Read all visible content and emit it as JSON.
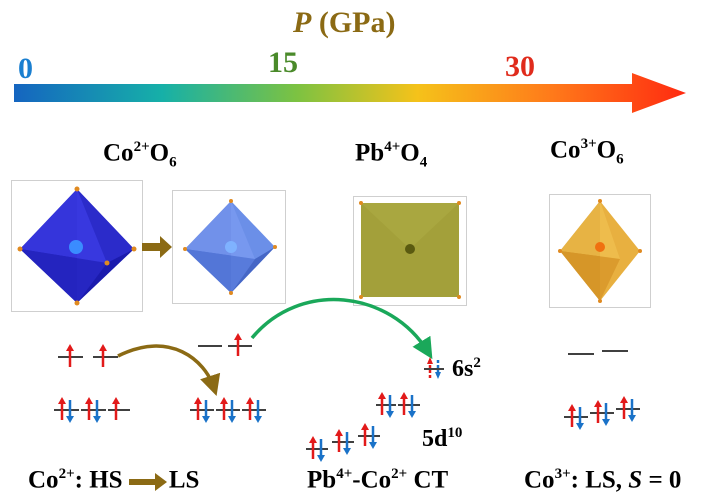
{
  "axis": {
    "title_symbol": "P",
    "title_unit": "(GPa)",
    "ticks": [
      {
        "label": "0",
        "color": "#1a7fd0"
      },
      {
        "label": "15",
        "color": "#4a8a2a"
      },
      {
        "label": "30",
        "color": "#e02b1c"
      }
    ],
    "gradient": [
      "#1565c0",
      "#16b0a8",
      "#7cc242",
      "#f5c21a",
      "#ff7a1a",
      "#ff2a10"
    ]
  },
  "groups": {
    "co2": {
      "base": "Co",
      "charge": "2+",
      "ligand": "O",
      "count": "6"
    },
    "pb4": {
      "base": "Pb",
      "charge": "4+",
      "ligand": "O",
      "count": "4"
    },
    "co3": {
      "base": "Co",
      "charge": "3+",
      "ligand": "O",
      "count": "6"
    }
  },
  "levels": {
    "s_orbital": "6s",
    "s_sup": "2",
    "d_orbital": "5d",
    "d_sup": "10"
  },
  "bottom": {
    "co2_ion": "Co",
    "co2_charge": "2+",
    "co2_text": ": HS",
    "co2_end": "LS",
    "ct_a": "Pb",
    "ct_a_charge": "4+",
    "ct_mid": "-Co",
    "ct_b_charge": "2+",
    "ct_end": " CT",
    "co3_ion": "Co",
    "co3_charge": "3+",
    "co3_text": ": LS, ",
    "co3_s": "S",
    "co3_eq": " = 0"
  },
  "colors": {
    "co2_octa": "#2f2fcf",
    "co2_octa_ls": "#5b7fe0",
    "pb_square": "#a3a03a",
    "co3_octa": "#e0a030",
    "transition_arrow": "#8b6a14",
    "ct_arrow": "#1aa85a",
    "spin_up": "#e21a1a",
    "spin_down": "#1a72c8"
  }
}
